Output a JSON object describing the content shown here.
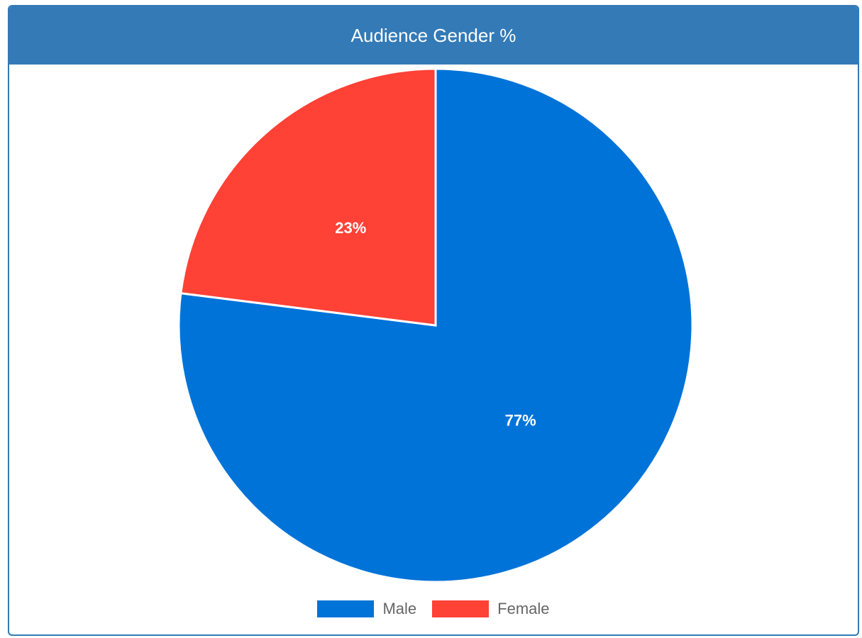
{
  "panel": {
    "title": "Audience Gender %"
  },
  "colors": {
    "header": "#337ab7",
    "male": "#0073d9",
    "female": "#ff4136"
  },
  "chart_data": {
    "type": "pie",
    "title": "Audience Gender %",
    "categories": [
      "Male",
      "Female"
    ],
    "values": [
      77,
      23
    ],
    "labels": [
      "77%",
      "23%"
    ],
    "colors": [
      "#0073d9",
      "#ff4136"
    ],
    "legend_position": "bottom"
  },
  "legend": {
    "items": [
      {
        "label": "Male",
        "color": "#0073d9"
      },
      {
        "label": "Female",
        "color": "#ff4136"
      }
    ]
  }
}
